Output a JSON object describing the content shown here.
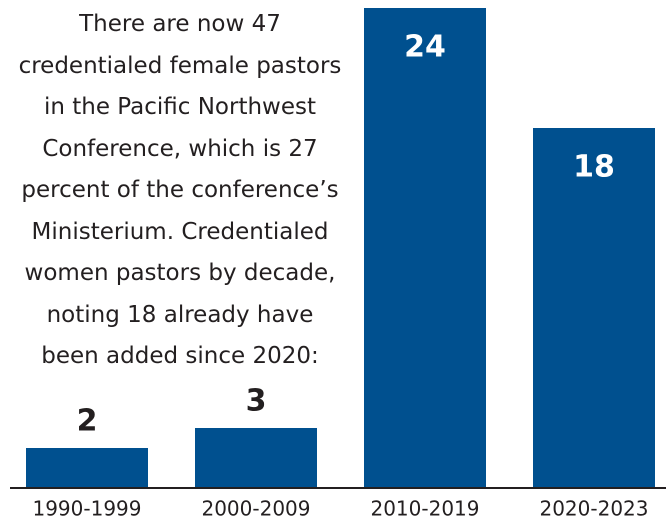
{
  "chart_data": {
    "type": "bar",
    "annotation": "There are now 47 credentialed female pastors in the Pacific Northwest Conference, which is 27 percent of the conference’s Ministerium. Credentialed women pastors by decade, noting 18 already have been added since 2020:",
    "categories": [
      "1990-1999",
      "2000-2009",
      "2010-2019",
      "2020-2023"
    ],
    "values": [
      2,
      3,
      24,
      18
    ],
    "color": "#00508f",
    "ylim": [
      0,
      24
    ]
  }
}
